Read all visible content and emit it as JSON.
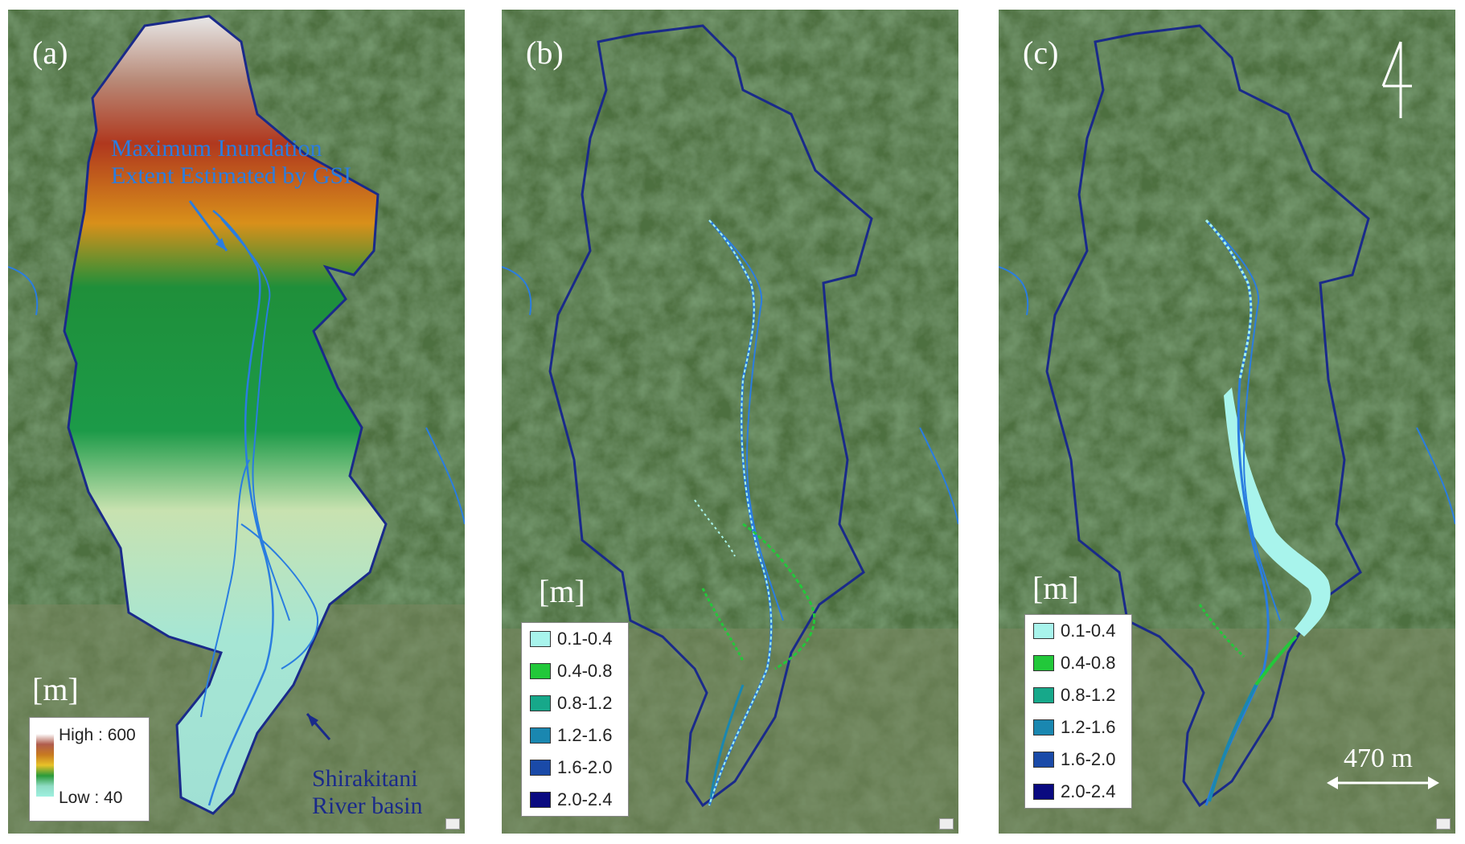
{
  "panels": {
    "a": {
      "label": "(a)",
      "unit": "[m]",
      "gsi_note_line1": "Maximum Inundation",
      "gsi_note_line2": "Extent Estimated by GSI",
      "basin_line1": "Shirakitani",
      "basin_line2": "River basin",
      "legend_high": "High : 600",
      "legend_low": "Low : 40"
    },
    "b": {
      "label": "(b)",
      "unit": "[m]"
    },
    "c": {
      "label": "(c)",
      "unit": "[m]",
      "scale_label": "470 m"
    }
  },
  "depth_legend": [
    {
      "label": "0.1-0.4",
      "color": "#a8f4ec"
    },
    {
      "label": "0.4-0.8",
      "color": "#22c83a"
    },
    {
      "label": "0.8-1.2",
      "color": "#17a88a"
    },
    {
      "label": "1.2-1.6",
      "color": "#1a87b0"
    },
    {
      "label": "1.6-2.0",
      "color": "#1a4aa8"
    },
    {
      "label": "2.0-2.4",
      "color": "#0a0a80"
    }
  ],
  "colors": {
    "boundary": "#1a2a8a",
    "river": "#2a7de0",
    "gsi_text": "#2a7de0",
    "basin_text": "#1a2a8a"
  }
}
